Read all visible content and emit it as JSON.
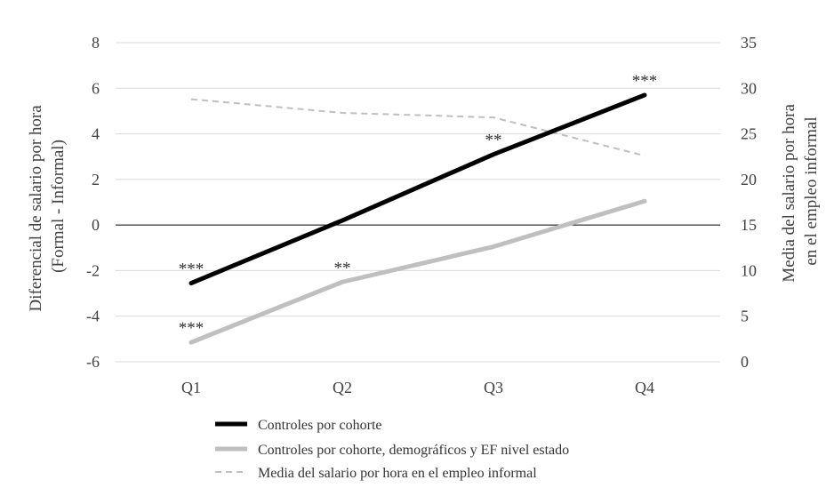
{
  "chart_data": {
    "type": "line",
    "categories": [
      "Q1",
      "Q2",
      "Q3",
      "Q4"
    ],
    "ylabel": [
      "Diferencial de salario por hora",
      "(Formal - Informal)"
    ],
    "y2label": [
      "Media del salario por hora",
      "en el empleo informal"
    ],
    "ylim": [
      -6,
      8
    ],
    "y_ticks": [
      "8",
      "6",
      "4",
      "2",
      "0",
      "-2",
      "-4",
      "-6"
    ],
    "y2lim": [
      0,
      35
    ],
    "y2_ticks": [
      "35",
      "30",
      "25",
      "20",
      "15",
      "10",
      "5",
      "0"
    ],
    "grid": true,
    "legend_position": "bottom",
    "series": [
      {
        "name": "Controles por cohorte",
        "axis": "left",
        "values": [
          -2.55,
          0.2,
          3.1,
          5.7
        ],
        "color": "#000000",
        "style": "solid-thick",
        "annotations": [
          "***",
          "",
          "**",
          "***"
        ]
      },
      {
        "name": "Controles por cohorte, demográficos y EF nivel estado",
        "axis": "left",
        "values": [
          -5.15,
          -2.5,
          -0.95,
          1.05
        ],
        "color": "#bfbfbf",
        "style": "solid-thick",
        "annotations": [
          "***",
          "**",
          "",
          ""
        ]
      },
      {
        "name": "Media del salario por hora en el empleo informal",
        "axis": "right",
        "values": [
          28.8,
          27.3,
          26.8,
          22.6
        ],
        "color": "#bfbfbf",
        "style": "dashed",
        "annotations": [
          "",
          "",
          "",
          ""
        ]
      }
    ]
  }
}
